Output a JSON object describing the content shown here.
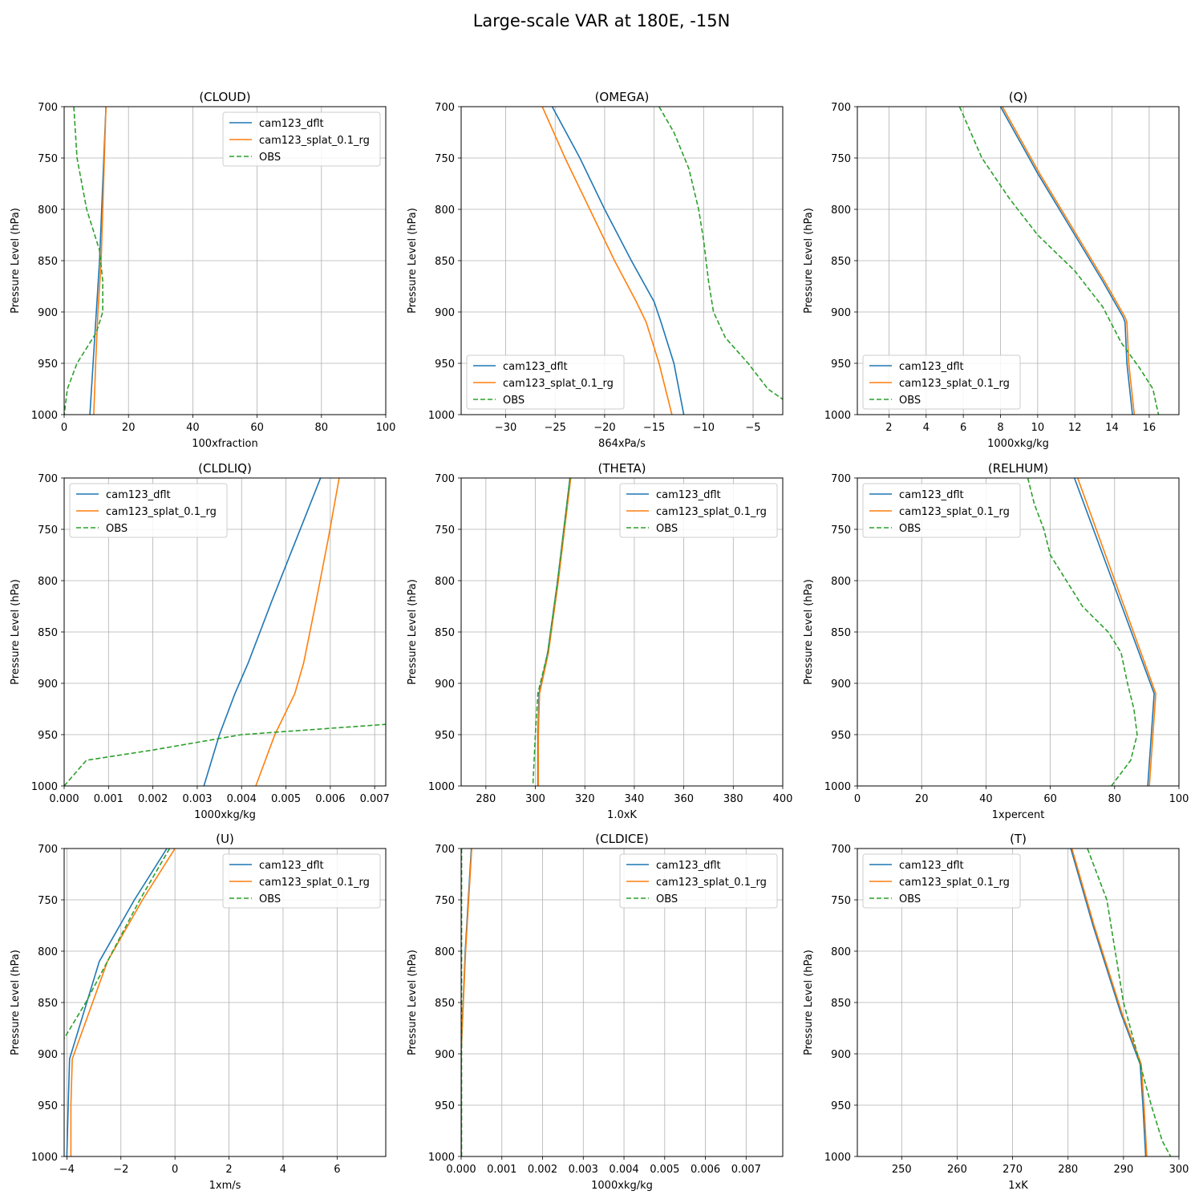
{
  "figure_title": "Large-scale VAR at 180E, -15N",
  "colors": {
    "model1": "#1f77b4",
    "model2": "#ff7f0e",
    "obs": "#2ca02c",
    "grid": "#b0b0b0"
  },
  "chart_data": [
    {
      "type": "line",
      "title": "(CLOUD)",
      "xlabel": "100xfraction",
      "ylabel": "Pressure Level (hPa)",
      "xlim": [
        0,
        100
      ],
      "xticks": [
        0,
        20,
        40,
        60,
        80,
        100
      ],
      "xtick_labels": [
        "0",
        "20",
        "40",
        "60",
        "80",
        "100"
      ],
      "ylim": [
        700,
        1000
      ],
      "yticks": [
        700,
        750,
        800,
        850,
        900,
        950,
        1000
      ],
      "grid": true,
      "legend": "upper-right",
      "series": [
        {
          "name": "cam123_dflt",
          "style": "solid",
          "x": [
            13,
            11,
            10,
            9,
            8
          ],
          "y": [
            700,
            850,
            900,
            950,
            1000
          ]
        },
        {
          "name": "cam123_splat_0.1_rg",
          "style": "solid",
          "x": [
            13,
            11.5,
            10.5,
            9.8,
            9.2
          ],
          "y": [
            700,
            850,
            900,
            950,
            1000
          ]
        },
        {
          "name": "OBS",
          "style": "dashed",
          "x": [
            3,
            4,
            7,
            11,
            12,
            12,
            10,
            4,
            1,
            0
          ],
          "y": [
            700,
            750,
            800,
            840,
            870,
            900,
            920,
            950,
            975,
            1000
          ]
        }
      ]
    },
    {
      "type": "line",
      "title": "(OMEGA)",
      "xlabel": "864xPa/s",
      "ylabel": "Pressure Level (hPa)",
      "xlim": [
        -34.5,
        -2
      ],
      "xticks": [
        -30,
        -25,
        -20,
        -15,
        -10,
        -5
      ],
      "xtick_labels": [
        "−30",
        "−25",
        "−20",
        "−15",
        "−10",
        "−5"
      ],
      "ylim": [
        700,
        1000
      ],
      "yticks": [
        700,
        750,
        800,
        850,
        900,
        950,
        1000
      ],
      "grid": true,
      "legend": "lower-left",
      "series": [
        {
          "name": "cam123_dflt",
          "style": "solid",
          "x": [
            -25.3,
            -22.5,
            -20,
            -17.3,
            -15,
            -14.3,
            -13,
            -12
          ],
          "y": [
            700,
            750,
            800,
            850,
            890,
            910,
            950,
            1000
          ]
        },
        {
          "name": "cam123_splat_0.1_rg",
          "style": "solid",
          "x": [
            -26.3,
            -24,
            -21.5,
            -19,
            -16.8,
            -15.8,
            -14.5,
            -13.2
          ],
          "y": [
            700,
            750,
            800,
            850,
            890,
            910,
            950,
            1000
          ]
        },
        {
          "name": "OBS",
          "style": "dashed",
          "x": [
            -14.5,
            -13,
            -11.5,
            -10.5,
            -10,
            -9.5,
            -9,
            -7.8,
            -5.5,
            -3.5,
            -2
          ],
          "y": [
            700,
            725,
            760,
            800,
            830,
            870,
            900,
            925,
            950,
            975,
            985
          ]
        }
      ]
    },
    {
      "type": "line",
      "title": "(Q)",
      "xlabel": "1000xkg/kg",
      "ylabel": "Pressure Level (hPa)",
      "xlim": [
        0.3,
        17.6
      ],
      "xticks": [
        2,
        4,
        6,
        8,
        10,
        12,
        14,
        16
      ],
      "xtick_labels": [
        "2",
        "4",
        "6",
        "8",
        "10",
        "12",
        "14",
        "16"
      ],
      "ylim": [
        700,
        1000
      ],
      "yticks": [
        700,
        750,
        800,
        850,
        900,
        950,
        1000
      ],
      "grid": true,
      "legend": "lower-left",
      "series": [
        {
          "name": "cam123_dflt",
          "style": "solid",
          "x": [
            8,
            10,
            12,
            13.5,
            14.6,
            14.7,
            14.8,
            15.1
          ],
          "y": [
            700,
            765,
            825,
            870,
            905,
            910,
            950,
            1000
          ]
        },
        {
          "name": "cam123_splat_0.1_rg",
          "style": "solid",
          "x": [
            8.1,
            10.1,
            12.1,
            13.6,
            14.7,
            14.8,
            14.9,
            15.2
          ],
          "y": [
            700,
            765,
            825,
            870,
            905,
            910,
            950,
            1000
          ]
        },
        {
          "name": "OBS",
          "style": "dashed",
          "x": [
            5.8,
            7,
            8.5,
            10,
            12,
            13.5,
            14.5,
            15.5,
            16.2,
            16.5
          ],
          "y": [
            700,
            750,
            790,
            825,
            860,
            895,
            930,
            955,
            975,
            1000
          ]
        }
      ]
    },
    {
      "type": "line",
      "title": "(CLDLIQ)",
      "xlabel": "1000xkg/kg",
      "ylabel": "Pressure Level (hPa)",
      "xlim": [
        0,
        0.00725
      ],
      "xticks": [
        0,
        0.001,
        0.002,
        0.003,
        0.004,
        0.005,
        0.006,
        0.007
      ],
      "xtick_labels": [
        "0.000",
        "0.001",
        "0.002",
        "0.003",
        "0.004",
        "0.005",
        "0.006",
        "0.007"
      ],
      "ylim": [
        700,
        1000
      ],
      "yticks": [
        700,
        750,
        800,
        850,
        900,
        950,
        1000
      ],
      "grid": true,
      "legend": "upper-left",
      "series": [
        {
          "name": "cam123_dflt",
          "style": "solid",
          "x": [
            0.00578,
            0.00523,
            0.00468,
            0.00415,
            0.00385,
            0.0035,
            0.00315
          ],
          "y": [
            700,
            760,
            820,
            880,
            910,
            950,
            1000
          ]
        },
        {
          "name": "cam123_splat_0.1_rg",
          "style": "solid",
          "x": [
            0.0062,
            0.00595,
            0.00568,
            0.0054,
            0.0052,
            0.00475,
            0.00432
          ],
          "y": [
            700,
            760,
            820,
            880,
            910,
            950,
            1000
          ]
        },
        {
          "name": "OBS",
          "style": "dashed",
          "x": [
            0,
            0.0005,
            0.002,
            0.004,
            0.00725
          ],
          "y": [
            1000,
            975,
            965,
            950,
            940
          ]
        }
      ]
    },
    {
      "type": "line",
      "title": "(THETA)",
      "xlabel": "1.0xK",
      "ylabel": "Pressure Level (hPa)",
      "xlim": [
        270,
        400
      ],
      "xticks": [
        280,
        300,
        320,
        340,
        360,
        380,
        400
      ],
      "xtick_labels": [
        "280",
        "300",
        "320",
        "340",
        "360",
        "380",
        "400"
      ],
      "ylim": [
        700,
        1000
      ],
      "yticks": [
        700,
        750,
        800,
        850,
        900,
        950,
        1000
      ],
      "grid": true,
      "legend": "upper-right",
      "series": [
        {
          "name": "cam123_dflt",
          "style": "solid",
          "x": [
            314,
            309,
            305,
            301.5,
            301,
            301
          ],
          "y": [
            700,
            800,
            870,
            910,
            950,
            1000
          ]
        },
        {
          "name": "cam123_splat_0.1_rg",
          "style": "solid",
          "x": [
            314.3,
            309.3,
            305.3,
            301.7,
            301.2,
            301.2
          ],
          "y": [
            700,
            800,
            870,
            910,
            950,
            1000
          ]
        },
        {
          "name": "OBS",
          "style": "dashed",
          "x": [
            314,
            309,
            305,
            301,
            300,
            299
          ],
          "y": [
            700,
            800,
            870,
            910,
            950,
            1000
          ]
        }
      ]
    },
    {
      "type": "line",
      "title": "(RELHUM)",
      "xlabel": "1xpercent",
      "ylabel": "Pressure Level (hPa)",
      "xlim": [
        0,
        100
      ],
      "xticks": [
        0,
        20,
        40,
        60,
        80,
        100
      ],
      "xtick_labels": [
        "0",
        "20",
        "40",
        "60",
        "80",
        "100"
      ],
      "ylim": [
        700,
        1000
      ],
      "yticks": [
        700,
        750,
        800,
        850,
        900,
        950,
        1000
      ],
      "grid": true,
      "legend": "upper-left",
      "series": [
        {
          "name": "cam123_dflt",
          "style": "solid",
          "x": [
            67.5,
            92.3,
            90.3
          ],
          "y": [
            700,
            910,
            1000
          ]
        },
        {
          "name": "cam123_splat_0.1_rg",
          "style": "solid",
          "x": [
            68.5,
            92.8,
            90.8
          ],
          "y": [
            700,
            910,
            1000
          ]
        },
        {
          "name": "OBS",
          "style": "dashed",
          "x": [
            53,
            55,
            58,
            60,
            65,
            70,
            78,
            82,
            84,
            86,
            87,
            85,
            79
          ],
          "y": [
            700,
            725,
            750,
            775,
            800,
            825,
            850,
            870,
            900,
            925,
            950,
            975,
            1000
          ]
        }
      ]
    },
    {
      "type": "line",
      "title": "(U)",
      "xlabel": "1xm/s",
      "ylabel": "Pressure Level (hPa)",
      "xlim": [
        -4.1,
        7.8
      ],
      "xticks": [
        -4,
        -2,
        0,
        2,
        4,
        6
      ],
      "xtick_labels": [
        "−4",
        "−2",
        "0",
        "2",
        "4",
        "6"
      ],
      "ylim": [
        700,
        1000
      ],
      "yticks": [
        700,
        750,
        800,
        850,
        900,
        950,
        1000
      ],
      "grid": true,
      "legend": "upper-right",
      "series": [
        {
          "name": "cam123_dflt",
          "style": "solid",
          "x": [
            -0.3,
            -1.5,
            -2.8,
            -3.9,
            -3.95,
            -4.0
          ],
          "y": [
            700,
            750,
            810,
            905,
            950,
            1000
          ]
        },
        {
          "name": "cam123_splat_0.1_rg",
          "style": "solid",
          "x": [
            0,
            -1.2,
            -2.5,
            -3.8,
            -3.85,
            -3.85
          ],
          "y": [
            700,
            750,
            810,
            905,
            950,
            1000
          ]
        },
        {
          "name": "OBS",
          "style": "dashed",
          "x": [
            -0.2,
            -1.3,
            -2.3,
            -3.3,
            -4.1
          ],
          "y": [
            700,
            750,
            800,
            850,
            885
          ]
        }
      ]
    },
    {
      "type": "line",
      "title": "(CLDICE)",
      "xlabel": "1000xkg/kg",
      "ylabel": "Pressure Level (hPa)",
      "xlim": [
        0,
        0.0079
      ],
      "xticks": [
        0,
        0.001,
        0.002,
        0.003,
        0.004,
        0.005,
        0.006,
        0.007
      ],
      "xtick_labels": [
        "0.000",
        "0.001",
        "0.002",
        "0.003",
        "0.004",
        "0.005",
        "0.006",
        "0.007"
      ],
      "ylim": [
        700,
        1000
      ],
      "yticks": [
        700,
        750,
        800,
        850,
        900,
        950,
        1000
      ],
      "grid": true,
      "legend": "upper-right",
      "series": [
        {
          "name": "cam123_dflt",
          "style": "solid",
          "x": [
            0.00025,
            0.0001,
            2e-05,
            0,
            0
          ],
          "y": [
            700,
            800,
            880,
            900,
            1000
          ]
        },
        {
          "name": "cam123_splat_0.1_rg",
          "style": "solid",
          "x": [
            0.00026,
            0.00011,
            2e-05,
            0,
            0
          ],
          "y": [
            700,
            800,
            880,
            900,
            1000
          ]
        },
        {
          "name": "OBS",
          "style": "dashed",
          "x": [
            1e-05,
            1e-05
          ],
          "y": [
            700,
            1000
          ]
        }
      ]
    },
    {
      "type": "line",
      "title": "(T)",
      "xlabel": "1xK",
      "ylabel": "Pressure Level (hPa)",
      "xlim": [
        242,
        300
      ],
      "xticks": [
        250,
        260,
        270,
        280,
        290,
        300
      ],
      "xtick_labels": [
        "250",
        "260",
        "270",
        "280",
        "290",
        "300"
      ],
      "ylim": [
        700,
        1000
      ],
      "yticks": [
        700,
        750,
        800,
        850,
        900,
        950,
        1000
      ],
      "grid": true,
      "legend": "upper-left",
      "series": [
        {
          "name": "cam123_dflt",
          "style": "solid",
          "x": [
            280.5,
            284.5,
            289.5,
            293,
            293.5,
            294
          ],
          "y": [
            700,
            775,
            860,
            910,
            950,
            1000
          ]
        },
        {
          "name": "cam123_splat_0.1_rg",
          "style": "solid",
          "x": [
            280.7,
            284.7,
            289.7,
            293.2,
            293.7,
            294.2
          ],
          "y": [
            700,
            775,
            860,
            910,
            950,
            1000
          ]
        },
        {
          "name": "OBS",
          "style": "dashed",
          "x": [
            283.5,
            287,
            290,
            293,
            295,
            297,
            298.5
          ],
          "y": [
            700,
            750,
            850,
            910,
            950,
            985,
            1000
          ]
        }
      ]
    }
  ]
}
